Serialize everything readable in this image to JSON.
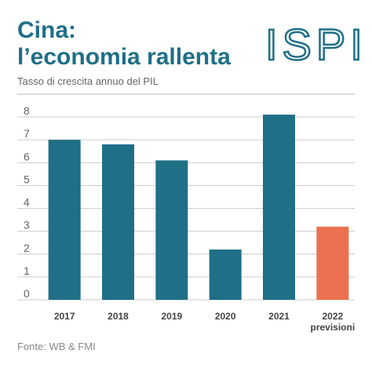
{
  "chart_data": {
    "type": "bar",
    "title_line1": "Cina:",
    "title_line2": "l’economia rallenta",
    "logo": "ISPI",
    "subtitle": "Tasso di crescita annuo del PIL",
    "categories": [
      "2017",
      "2018",
      "2019",
      "2020",
      "2021",
      "2022"
    ],
    "category_note": "previsioni",
    "values": [
      7.0,
      6.8,
      6.1,
      2.2,
      8.1,
      3.2
    ],
    "colors": [
      "#1f6f87",
      "#1f6f87",
      "#1f6f87",
      "#1f6f87",
      "#1f6f87",
      "#ec7150"
    ],
    "ylim": [
      0,
      8
    ],
    "yticks": [
      0,
      1,
      2,
      3,
      4,
      5,
      6,
      7,
      8
    ],
    "grid": true,
    "source": "Fonte: WB & FMI"
  }
}
